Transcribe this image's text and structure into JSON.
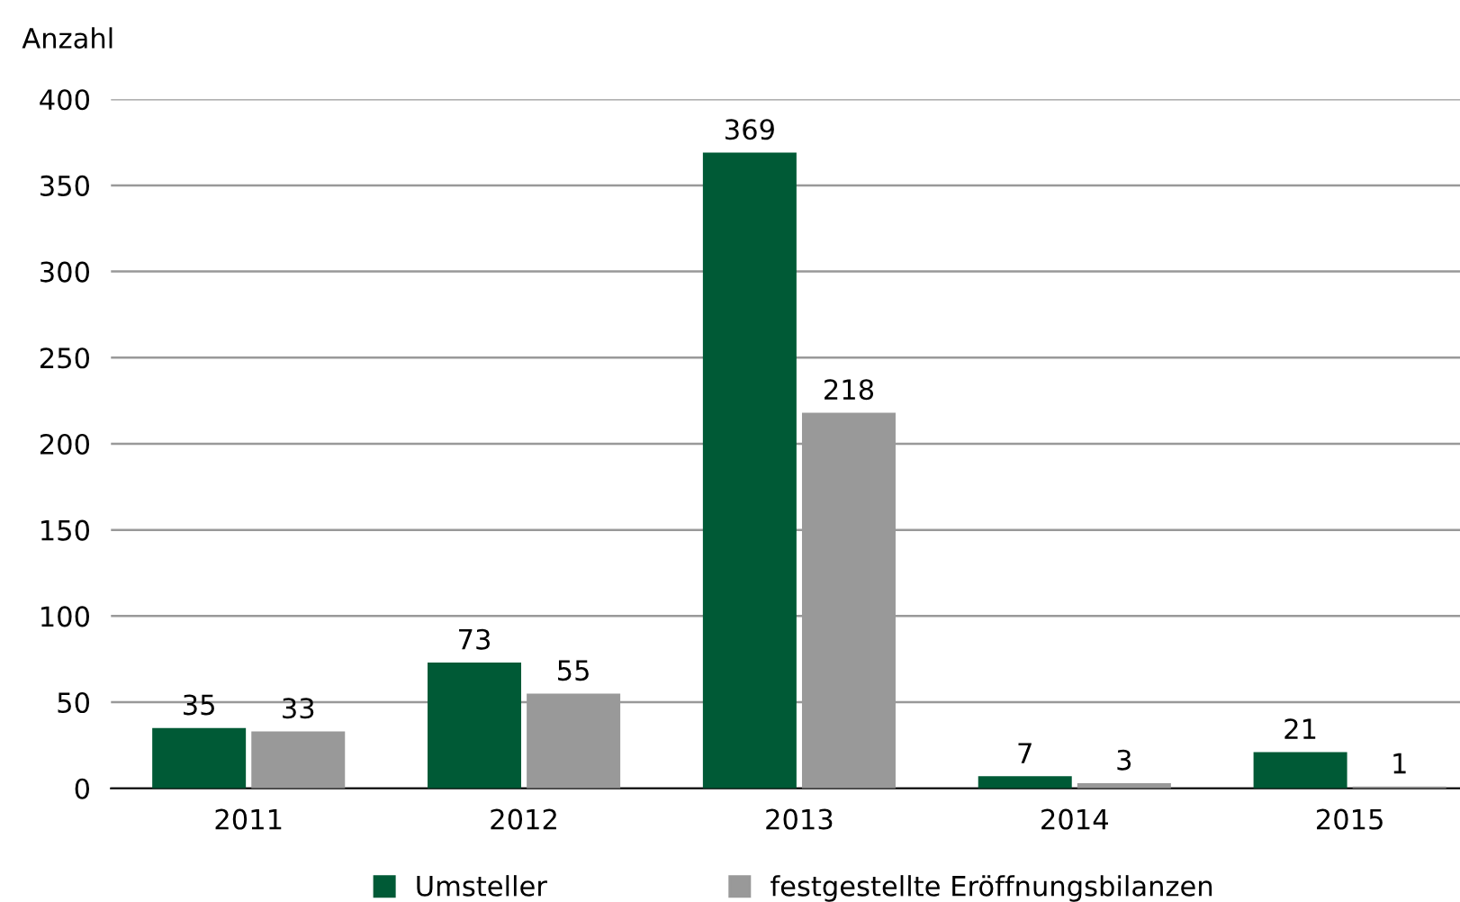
{
  "chart_data": {
    "type": "bar",
    "ylabel": "Anzahl",
    "categories": [
      "2011",
      "2012",
      "2013",
      "2014",
      "2015"
    ],
    "series": [
      {
        "name": "Umsteller",
        "color": "#005a36",
        "values": [
          35,
          73,
          369,
          7,
          21
        ]
      },
      {
        "name": "festgestellte Eröffnungsbilanzen",
        "color": "#999999",
        "values": [
          33,
          55,
          218,
          3,
          1
        ]
      }
    ],
    "ylim": [
      0,
      400
    ],
    "yticks": [
      0,
      50,
      100,
      150,
      200,
      250,
      300,
      350,
      400
    ],
    "grid": "y",
    "legend": "bottom",
    "data_labels": true
  }
}
